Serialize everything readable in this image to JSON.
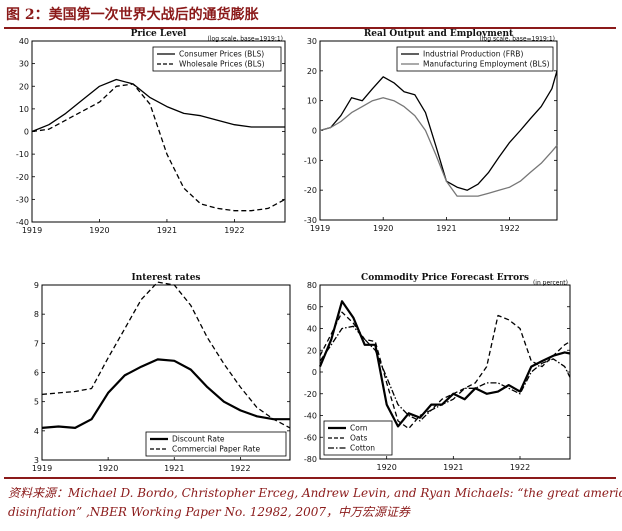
{
  "header": {
    "figure_title": "图 2：美国第一次世界大战后的通货膨胀"
  },
  "source": {
    "line1": "资料来源：Michael D. Bordo, Christopher Erceg, Andrew Levin, and Ryan Michaels:   “the great american",
    "line2": "disinflation” ,NBER Working Paper No. 12982, 2007，中万宏源证券"
  },
  "colors": {
    "accent": "#8b1a1a",
    "series_dark": "#000000",
    "series_light": "#777777"
  },
  "chart_data": [
    {
      "type": "line",
      "title": "Price Level",
      "note": "(log scale, base=1919:1)",
      "xlim": [
        1919,
        1922.75
      ],
      "ylim": [
        -40,
        40
      ],
      "xticks": [
        1919,
        1920,
        1921,
        1922
      ],
      "yticks": [
        -40,
        -30,
        -20,
        -10,
        0,
        10,
        20,
        30,
        40
      ],
      "legend_position": "top-right",
      "series": [
        {
          "name": "Consumer Prices (BLS)",
          "style": "solid",
          "x": [
            1919.0,
            1919.25,
            1919.5,
            1919.75,
            1920.0,
            1920.25,
            1920.5,
            1920.75,
            1921.0,
            1921.25,
            1921.5,
            1921.75,
            1922.0,
            1922.25,
            1922.5,
            1922.75
          ],
          "y": [
            0,
            3,
            8,
            14,
            20,
            23,
            21,
            15,
            11,
            8,
            7,
            5,
            3,
            2,
            2,
            2
          ]
        },
        {
          "name": "Wholesale Prices (BLS)",
          "style": "dashed",
          "x": [
            1919.0,
            1919.25,
            1919.5,
            1919.75,
            1920.0,
            1920.25,
            1920.5,
            1920.75,
            1921.0,
            1921.25,
            1921.5,
            1921.75,
            1922.0,
            1922.25,
            1922.5,
            1922.75
          ],
          "y": [
            0,
            1,
            5,
            9,
            13,
            20,
            21,
            12,
            -10,
            -25,
            -32,
            -34,
            -35,
            -35,
            -34,
            -30
          ]
        }
      ]
    },
    {
      "type": "line",
      "title": "Real Output and Employment",
      "note": "(log scale, base=1919:1)",
      "xlim": [
        1919,
        1922.75
      ],
      "ylim": [
        -30,
        30
      ],
      "xticks": [
        1919,
        1920,
        1921,
        1922
      ],
      "yticks": [
        -30,
        -20,
        -10,
        0,
        10,
        20,
        30
      ],
      "legend_position": "top-right",
      "series": [
        {
          "name": "Industrial Production (FRB)",
          "style": "solid",
          "color": "dark",
          "x": [
            1919.0,
            1919.17,
            1919.33,
            1919.5,
            1919.67,
            1919.83,
            1920.0,
            1920.17,
            1920.33,
            1920.5,
            1920.67,
            1920.83,
            1921.0,
            1921.17,
            1921.33,
            1921.5,
            1921.67,
            1921.83,
            1922.0,
            1922.17,
            1922.33,
            1922.5,
            1922.67,
            1922.75
          ],
          "y": [
            0,
            1,
            5,
            11,
            10,
            14,
            18,
            16,
            13,
            12,
            6,
            -5,
            -17,
            -19,
            -20,
            -18,
            -14,
            -9,
            -4,
            0,
            4,
            8,
            14,
            20
          ]
        },
        {
          "name": "Manufacturing Employment (BLS)",
          "style": "solid",
          "color": "light",
          "x": [
            1919.0,
            1919.17,
            1919.33,
            1919.5,
            1919.67,
            1919.83,
            1920.0,
            1920.17,
            1920.33,
            1920.5,
            1920.67,
            1920.83,
            1921.0,
            1921.17,
            1921.33,
            1921.5,
            1921.67,
            1921.83,
            1922.0,
            1922.17,
            1922.33,
            1922.5,
            1922.67,
            1922.75
          ],
          "y": [
            0,
            1,
            3,
            6,
            8,
            10,
            11,
            10,
            8,
            5,
            0,
            -8,
            -17,
            -22,
            -22,
            -22,
            -21,
            -20,
            -19,
            -17,
            -14,
            -11,
            -7,
            -5
          ]
        }
      ]
    },
    {
      "type": "line",
      "title": "Interest rates",
      "note": "",
      "xlim": [
        1919,
        1922.75
      ],
      "ylim": [
        3,
        9
      ],
      "xticks": [
        1919,
        1920,
        1921,
        1922
      ],
      "yticks": [
        3,
        4,
        5,
        6,
        7,
        8,
        9
      ],
      "legend_position": "bottom-right",
      "series": [
        {
          "name": "Discount Rate",
          "style": "solid",
          "bold": true,
          "x": [
            1919.0,
            1919.25,
            1919.5,
            1919.75,
            1920.0,
            1920.25,
            1920.5,
            1920.75,
            1921.0,
            1921.25,
            1921.5,
            1921.75,
            1922.0,
            1922.25,
            1922.5,
            1922.75
          ],
          "y": [
            4.1,
            4.15,
            4.1,
            4.4,
            5.3,
            5.9,
            6.2,
            6.45,
            6.4,
            6.1,
            5.5,
            5.0,
            4.7,
            4.5,
            4.4,
            4.4
          ]
        },
        {
          "name": "Commercial Paper Rate",
          "style": "dashed",
          "x": [
            1919.0,
            1919.25,
            1919.5,
            1919.75,
            1920.0,
            1920.25,
            1920.5,
            1920.75,
            1921.0,
            1921.25,
            1921.5,
            1921.75,
            1922.0,
            1922.25,
            1922.5,
            1922.75
          ],
          "y": [
            5.25,
            5.3,
            5.35,
            5.45,
            6.5,
            7.5,
            8.5,
            9.1,
            9.0,
            8.3,
            7.2,
            6.3,
            5.5,
            4.8,
            4.4,
            4.1
          ]
        }
      ]
    },
    {
      "type": "line",
      "title": "Commodity Price Forecast Errors",
      "note": "(in percent)",
      "xlim": [
        1919,
        1922.75
      ],
      "ylim": [
        -80,
        80
      ],
      "xticks": [
        1920,
        1921,
        1922
      ],
      "yticks": [
        -80,
        -60,
        -40,
        -20,
        0,
        20,
        40,
        60,
        80
      ],
      "legend_position": "bottom-left",
      "series": [
        {
          "name": "Corn",
          "style": "solid",
          "bold": true,
          "x": [
            1919.0,
            1919.17,
            1919.33,
            1919.5,
            1919.67,
            1919.83,
            1920.0,
            1920.17,
            1920.33,
            1920.5,
            1920.67,
            1920.83,
            1921.0,
            1921.17,
            1921.33,
            1921.5,
            1921.67,
            1921.83,
            1922.0,
            1922.17,
            1922.33,
            1922.5,
            1922.67,
            1922.75
          ],
          "y": [
            5,
            30,
            65,
            50,
            25,
            25,
            -30,
            -50,
            -38,
            -42,
            -30,
            -30,
            -20,
            -25,
            -15,
            -20,
            -18,
            -12,
            -18,
            5,
            10,
            15,
            18,
            17
          ]
        },
        {
          "name": "Oats",
          "style": "dashed",
          "x": [
            1919.0,
            1919.17,
            1919.33,
            1919.5,
            1919.67,
            1919.83,
            1920.0,
            1920.17,
            1920.33,
            1920.5,
            1920.67,
            1920.83,
            1921.0,
            1921.17,
            1921.33,
            1921.5,
            1921.67,
            1921.83,
            1922.0,
            1922.17,
            1922.33,
            1922.5,
            1922.67,
            1922.75
          ],
          "y": [
            15,
            35,
            55,
            45,
            30,
            28,
            -10,
            -45,
            -52,
            -40,
            -35,
            -25,
            -20,
            -15,
            -10,
            5,
            52,
            48,
            40,
            10,
            5,
            15,
            25,
            28
          ]
        },
        {
          "name": "Cotton",
          "style": "dashdot",
          "x": [
            1919.0,
            1919.17,
            1919.33,
            1919.5,
            1919.67,
            1919.83,
            1920.0,
            1920.17,
            1920.33,
            1920.5,
            1920.67,
            1920.83,
            1921.0,
            1921.17,
            1921.33,
            1921.5,
            1921.67,
            1921.83,
            1922.0,
            1922.17,
            1922.33,
            1922.5,
            1922.67,
            1922.75
          ],
          "y": [
            10,
            25,
            40,
            42,
            30,
            20,
            -5,
            -30,
            -40,
            -45,
            -35,
            -30,
            -25,
            -15,
            -15,
            -10,
            -10,
            -15,
            -20,
            0,
            8,
            12,
            5,
            -5
          ]
        }
      ]
    }
  ]
}
